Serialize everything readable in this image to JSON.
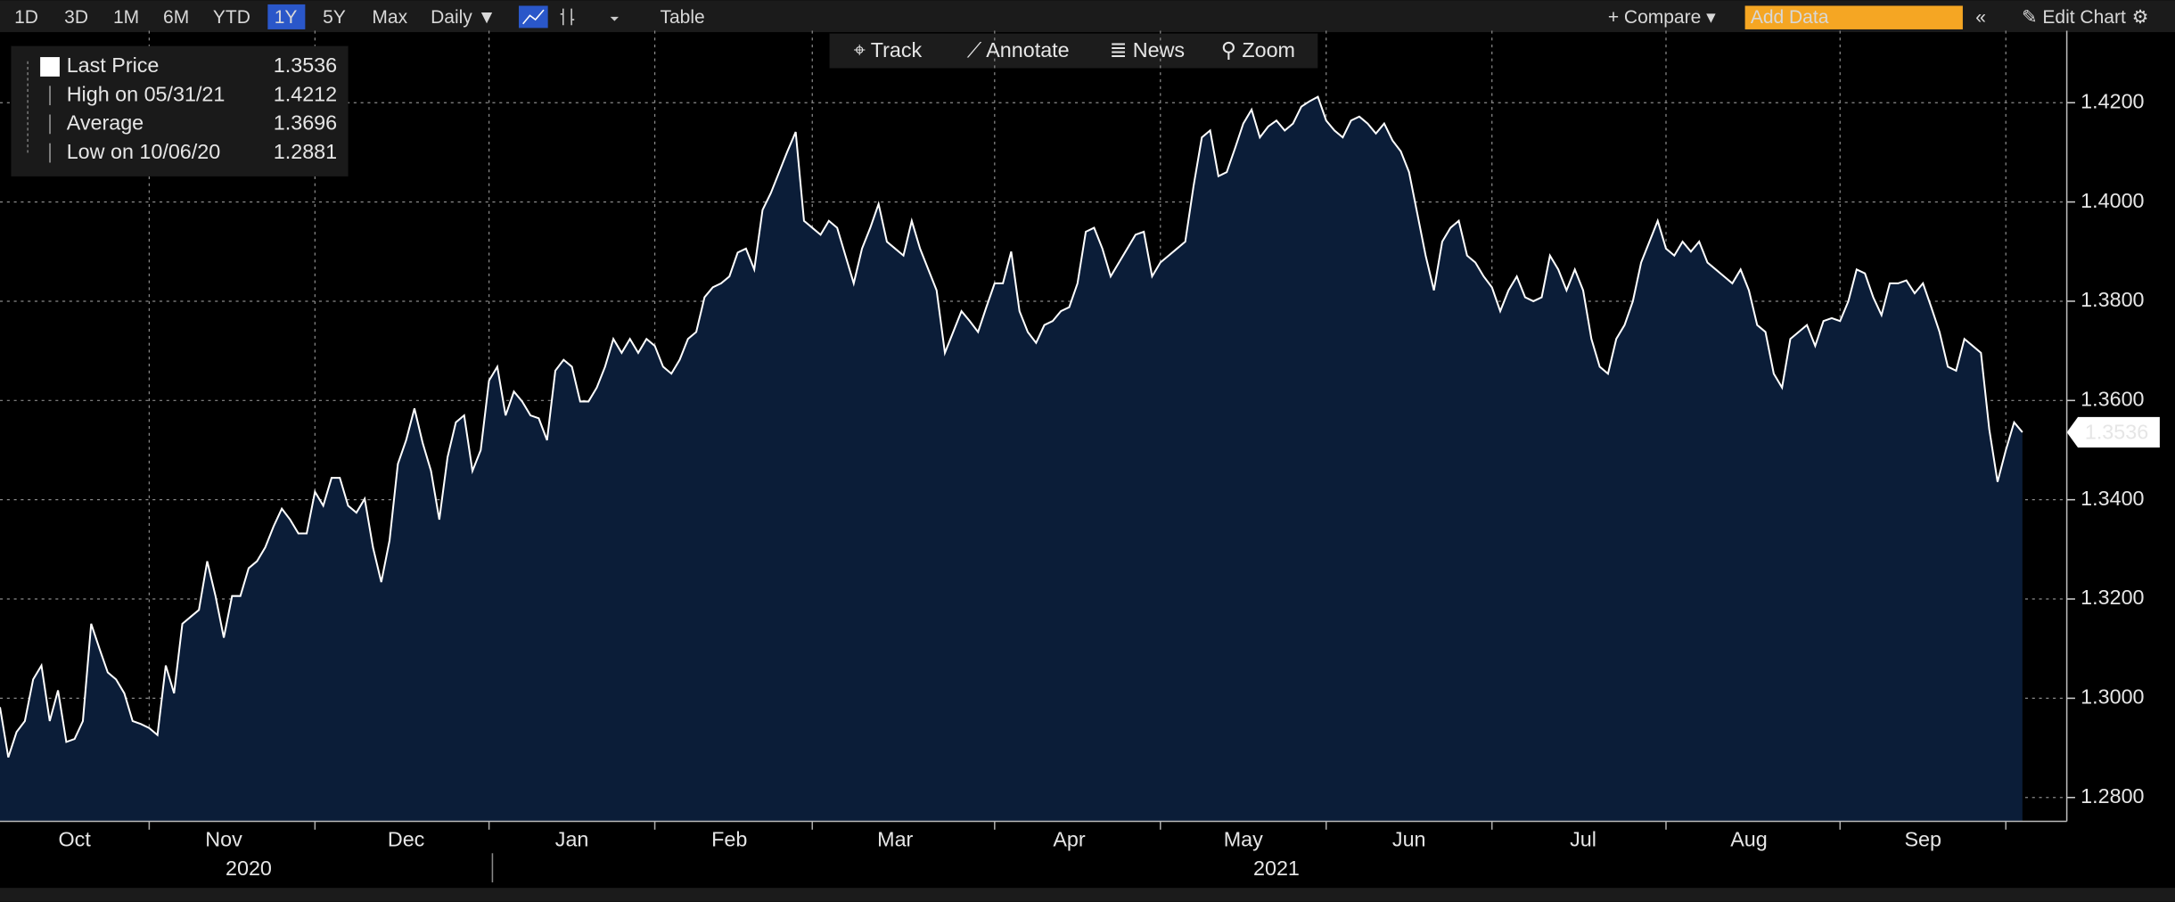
{
  "ui": {
    "toolbar": [
      "1D",
      "3D",
      "1M",
      "6M",
      "YTD",
      "1Y",
      "5Y",
      "Max",
      "Daily ▼",
      "Table"
    ],
    "toolbar_right": [
      "+ Compare ▾",
      "Add Data",
      "«",
      "✎ Edit Chart",
      "⚙"
    ],
    "chart_tools": [
      "⌖ Track",
      "⟋ Annotate",
      "≣ News",
      "⚲ Zoom"
    ]
  },
  "chart_data": {
    "type": "area",
    "legend_stats": [
      {
        "label": "Last Price",
        "value": 1.3536
      },
      {
        "label": "High on 05/31/21",
        "value": 1.4212
      },
      {
        "label": "Average",
        "value": 1.3696
      },
      {
        "label": "Low on 10/06/20",
        "value": 1.2881
      }
    ],
    "series": [
      {
        "name": "Last Price",
        "color": "#ffffff",
        "fill": "#0b1d38",
        "values": [
          1.2982,
          1.2881,
          1.2932,
          1.2954,
          1.3038,
          1.3066,
          1.2954,
          1.3016,
          1.2912,
          1.2918,
          1.2954,
          1.315,
          1.31,
          1.3052,
          1.3038,
          1.301,
          1.2954,
          1.2948,
          1.294,
          1.2926,
          1.3066,
          1.301,
          1.315,
          1.3164,
          1.3178,
          1.3276,
          1.3206,
          1.3122,
          1.3206,
          1.3206,
          1.3262,
          1.3276,
          1.3304,
          1.3346,
          1.3382,
          1.336,
          1.3332,
          1.3332,
          1.3416,
          1.3388,
          1.3444,
          1.3444,
          1.3388,
          1.3374,
          1.3402,
          1.3304,
          1.3234,
          1.3318,
          1.3472,
          1.352,
          1.3584,
          1.3514,
          1.3458,
          1.336,
          1.3486,
          1.3556,
          1.357,
          1.3458,
          1.35,
          1.364,
          1.3668,
          1.357,
          1.3618,
          1.3598,
          1.357,
          1.3564,
          1.352,
          1.366,
          1.3682,
          1.3668,
          1.3598,
          1.3598,
          1.3626,
          1.3668,
          1.3724,
          1.3696,
          1.3724,
          1.3696,
          1.3724,
          1.371,
          1.3668,
          1.3654,
          1.3682,
          1.3724,
          1.3738,
          1.3808,
          1.3828,
          1.3836,
          1.385,
          1.3898,
          1.3906,
          1.3864,
          1.3984,
          1.4018,
          1.406,
          1.4102,
          1.4141,
          1.3962,
          1.3948,
          1.3934,
          1.3962,
          1.3948,
          1.3892,
          1.3836,
          1.3906,
          1.3948,
          1.3996,
          1.392,
          1.3906,
          1.3892,
          1.3962,
          1.3906,
          1.3864,
          1.3822,
          1.3696,
          1.3738,
          1.378,
          1.376,
          1.3738,
          1.3788,
          1.3836,
          1.3836,
          1.39,
          1.378,
          1.3738,
          1.3716,
          1.3752,
          1.376,
          1.378,
          1.3788,
          1.3836,
          1.394,
          1.3948,
          1.3906,
          1.385,
          1.3878,
          1.3906,
          1.3934,
          1.394,
          1.385,
          1.3878,
          1.3892,
          1.3906,
          1.392,
          1.4032,
          1.413,
          1.4144,
          1.4052,
          1.406,
          1.4108,
          1.4158,
          1.4186,
          1.413,
          1.4152,
          1.4164,
          1.4144,
          1.4158,
          1.4192,
          1.4203,
          1.4212,
          1.4164,
          1.4144,
          1.413,
          1.4164,
          1.4172,
          1.4158,
          1.4138,
          1.4158,
          1.4124,
          1.4102,
          1.406,
          1.3976,
          1.3892,
          1.3822,
          1.392,
          1.3948,
          1.3962,
          1.3892,
          1.3878,
          1.385,
          1.3828,
          1.378,
          1.3822,
          1.385,
          1.3808,
          1.38,
          1.3808,
          1.3892,
          1.3864,
          1.3822,
          1.3864,
          1.3822,
          1.3724,
          1.3668,
          1.3654,
          1.3724,
          1.3752,
          1.38,
          1.3878,
          1.392,
          1.3962,
          1.3906,
          1.3892,
          1.392,
          1.39,
          1.392,
          1.3878,
          1.3864,
          1.385,
          1.3836,
          1.3864,
          1.3822,
          1.3752,
          1.3738,
          1.3654,
          1.3626,
          1.3724,
          1.3738,
          1.3752,
          1.371,
          1.376,
          1.3766,
          1.376,
          1.38,
          1.3864,
          1.3856,
          1.3808,
          1.3772,
          1.3836,
          1.3836,
          1.3842,
          1.3816,
          1.3836,
          1.3788,
          1.3738,
          1.3668,
          1.366,
          1.3724,
          1.371,
          1.3696,
          1.3542,
          1.3436,
          1.35,
          1.3556,
          1.3536
        ]
      }
    ],
    "xlim": [
      0,
      244
    ],
    "xticks": [
      {
        "value": 9,
        "label": "Oct"
      },
      {
        "value": 27,
        "label": "Nov"
      },
      {
        "value": 49,
        "label": "Dec"
      },
      {
        "value": 69,
        "label": "Jan"
      },
      {
        "value": 88,
        "label": "Feb"
      },
      {
        "value": 108,
        "label": "Mar"
      },
      {
        "value": 129,
        "label": "Apr"
      },
      {
        "value": 150,
        "label": "May"
      },
      {
        "value": 170,
        "label": "Jun"
      },
      {
        "value": 191,
        "label": "Jul"
      },
      {
        "value": 211,
        "label": "Aug"
      },
      {
        "value": 232,
        "label": "Sep"
      }
    ],
    "xgrid": [
      18,
      38,
      59,
      79,
      98,
      120,
      140,
      160,
      180,
      201,
      222,
      242
    ],
    "year_labels": [
      {
        "value": 30,
        "label": "2020"
      },
      {
        "value": 154,
        "label": "2021"
      }
    ],
    "ylim": [
      1.2752,
      1.4345
    ],
    "yticks": [
      {
        "value": 1.28,
        "label": "1.2800"
      },
      {
        "value": 1.3,
        "label": "1.3000"
      },
      {
        "value": 1.32,
        "label": "1.3200"
      },
      {
        "value": 1.34,
        "label": "1.3400"
      },
      {
        "value": 1.36,
        "label": "1.3600"
      },
      {
        "value": 1.38,
        "label": "1.3800"
      },
      {
        "value": 1.4,
        "label": "1.4000"
      },
      {
        "value": 1.42,
        "label": "1.4200"
      }
    ],
    "grid": true
  }
}
